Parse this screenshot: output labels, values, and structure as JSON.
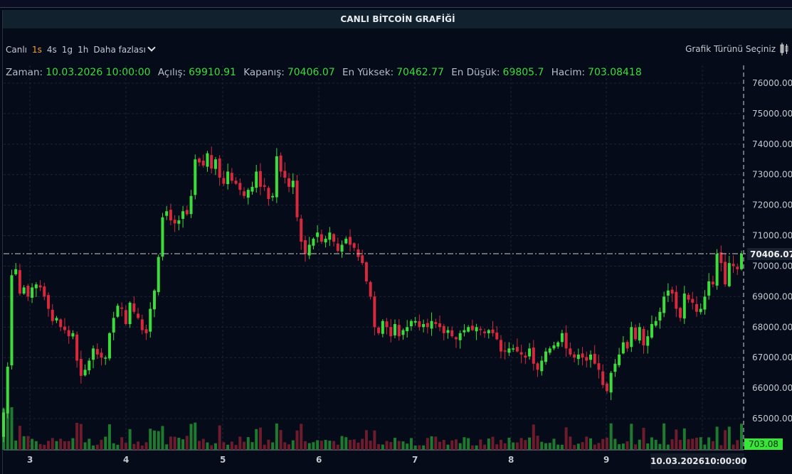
{
  "header": {
    "title": "CANLI BİTCOİN GRAFİĞİ"
  },
  "toolbar": {
    "intervals": [
      {
        "label": "Canlı",
        "active": false
      },
      {
        "label": "1s",
        "active": true
      },
      {
        "label": "4s",
        "active": false
      },
      {
        "label": "1g",
        "active": false
      },
      {
        "label": "1h",
        "active": false
      }
    ],
    "more_label": "Daha fazlası",
    "chart_type_label": "Grafik Türünü Seçiniz"
  },
  "info": {
    "time_label": "Zaman:",
    "time_value": "10.03.2026 10:00:00",
    "open_label": "Açılış:",
    "open_value": "69910.91",
    "close_label": "Kapanış:",
    "close_value": "70406.07",
    "high_label": "En Yüksek:",
    "high_value": "70462.77",
    "low_label": "En Düşük:",
    "low_value": "69805.7",
    "volume_label": "Hacim:",
    "volume_value": "703.08418"
  },
  "tags": {
    "last_price": "70406.07",
    "last_volume": "703.08",
    "crosshair_date": "10.03.2026",
    "crosshair_time": "10:00:00"
  },
  "colors": {
    "up": "#3ddc3d",
    "down": "#d8283c",
    "vol_up": "#1e7a2e",
    "vol_down": "#6e1c2c",
    "grid": "#1c2638",
    "background": "#050b19"
  },
  "chart_data": {
    "type": "candlestick",
    "title": "CANLI BİTCOİN GRAFİĞİ",
    "xlabel": "",
    "ylabel": "",
    "x_ticks": [
      "3",
      "4",
      "5",
      "6",
      "7",
      "8",
      "9"
    ],
    "y_ticks": [
      76000,
      75000,
      74000,
      73000,
      72000,
      71000,
      70000,
      69000,
      68000,
      67000,
      66000,
      65000
    ],
    "ylim": [
      64000,
      76400
    ],
    "grid": true,
    "last_price": 70406.07,
    "candles_close_path": [
      65200,
      66700,
      69700,
      69900,
      69100,
      69300,
      69000,
      69300,
      69400,
      69300,
      69000,
      68600,
      68200,
      68300,
      68000,
      67900,
      67700,
      67800,
      66900,
      66400,
      66600,
      66900,
      67300,
      67100,
      67000,
      67000,
      67800,
      68300,
      68700,
      68600,
      68100,
      68800,
      68500,
      68300,
      67900,
      67800,
      68600,
      69200,
      70300,
      71600,
      71800,
      71500,
      71400,
      71500,
      71800,
      71700,
      72300,
      73500,
      73400,
      73300,
      73700,
      73200,
      73500,
      72900,
      72700,
      73100,
      72800,
      72700,
      72500,
      72300,
      72500,
      72600,
      73100,
      72600,
      72600,
      72200,
      72300,
      73600,
      73100,
      72900,
      72600,
      72800,
      71600,
      70800,
      70400,
      70700,
      70900,
      71100,
      70800,
      70900,
      71100,
      70800,
      70500,
      70700,
      70900,
      70700,
      70600,
      70300,
      70100,
      69500,
      69000,
      68000,
      67800,
      68200,
      68000,
      67700,
      68100,
      67700,
      67900,
      68000,
      68200,
      68200,
      68000,
      68100,
      68000,
      68200,
      68100,
      68000,
      67800,
      67900,
      67700,
      67600,
      67800,
      67900,
      68000,
      67900,
      68000,
      67900,
      67800,
      67900,
      67800,
      67600,
      67200,
      67200,
      67300,
      67300,
      67200,
      67100,
      67000,
      67300,
      66800,
      66600,
      66900,
      67200,
      67300,
      67400,
      67500,
      67800,
      67300,
      67100,
      67000,
      67100,
      67000,
      66900,
      67100,
      66800,
      66600,
      66100,
      65900,
      66500,
      66800,
      67100,
      67500,
      67300,
      68000,
      67600,
      68000,
      67400,
      67700,
      68100,
      68200,
      68500,
      69000,
      69200,
      69100,
      68600,
      68300,
      69100,
      68900,
      68800,
      68500,
      68600,
      69000,
      69500,
      69400,
      70400,
      70100,
      69400,
      70100,
      70000,
      69900,
      70406
    ],
    "volume_note": "volume bars beneath candles; last volume 703.08"
  }
}
